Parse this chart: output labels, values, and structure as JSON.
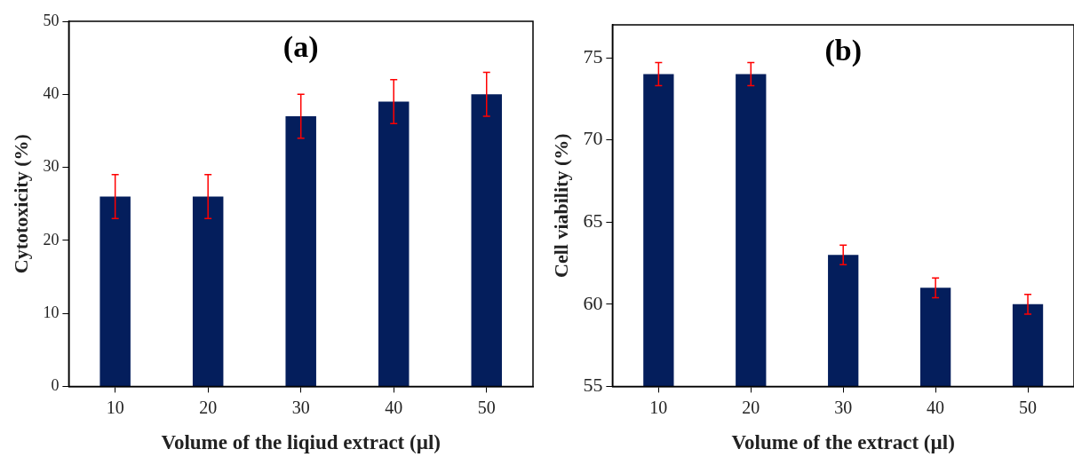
{
  "chart_data": [
    {
      "type": "bar",
      "title": "(a)",
      "xlabel": "Volume of the liqiud extract (µl)",
      "ylabel": "Cytotoxicity (%)",
      "categories": [
        "10",
        "20",
        "30",
        "40",
        "50"
      ],
      "values": [
        26,
        26,
        37,
        39,
        40
      ],
      "errors": [
        3,
        3,
        3,
        3,
        3
      ],
      "color": "#041e5c",
      "ylim": [
        0,
        50
      ],
      "yticks": [
        0,
        10,
        20,
        30,
        40,
        50
      ]
    },
    {
      "type": "bar",
      "title": "(b)",
      "xlabel": "Volume of the extract (µl)",
      "ylabel": "Cell viability (%)",
      "categories": [
        "10",
        "20",
        "30",
        "40",
        "50"
      ],
      "values": [
        74,
        74,
        63,
        61,
        60
      ],
      "errors": [
        0.7,
        0.7,
        0.6,
        0.6,
        0.6
      ],
      "color": "#041e5c",
      "ylim": [
        55,
        77
      ],
      "yticks": [
        55,
        60,
        65,
        70,
        75
      ]
    }
  ]
}
